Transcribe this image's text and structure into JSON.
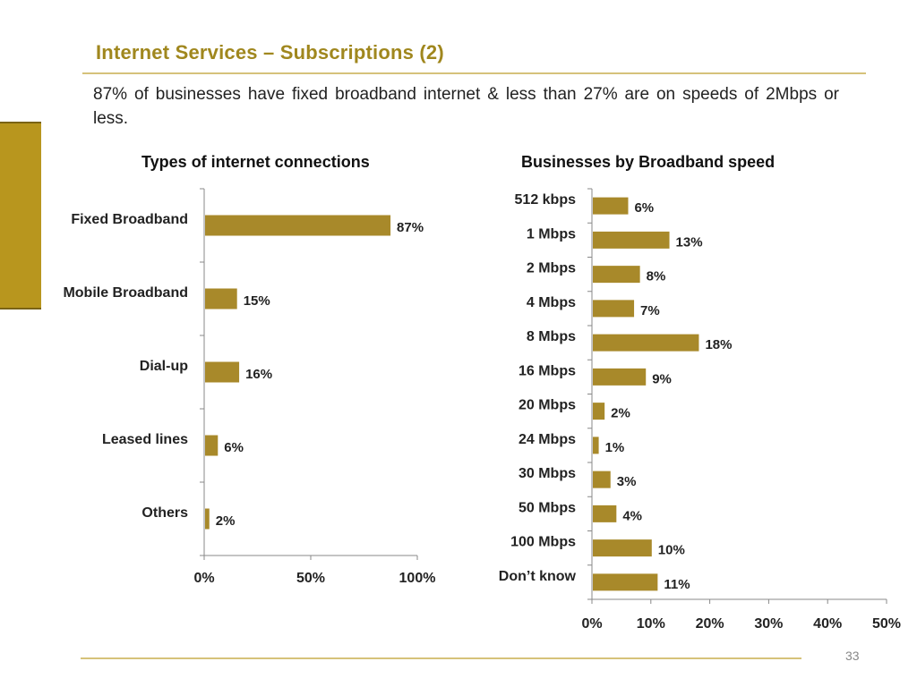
{
  "slide": {
    "title": "Internet Services – Subscriptions (2)",
    "subtitle": "87% of businesses have fixed broadband internet & less than 27% are on speeds of 2Mbps or less.",
    "page_number": "33"
  },
  "colors": {
    "bar": "#a8892a",
    "accent": "#b8961e",
    "title": "#a0871e",
    "rule": "#d6c27a"
  },
  "chart_data": [
    {
      "type": "bar",
      "orientation": "horizontal",
      "title": "Types of internet connections",
      "categories": [
        "Fixed Broadband",
        "Mobile Broadband",
        "Dial-up",
        "Leased lines",
        "Others"
      ],
      "values": [
        87,
        15,
        16,
        6,
        2
      ],
      "value_labels": [
        "87%",
        "15%",
        "16%",
        "6%",
        "2%"
      ],
      "xlim": [
        0,
        100
      ],
      "xticks": [
        0,
        50,
        100
      ],
      "xtick_labels": [
        "0%",
        "50%",
        "100%"
      ],
      "grid": false,
      "legend": "none"
    },
    {
      "type": "bar",
      "orientation": "horizontal",
      "title": "Businesses by Broadband speed",
      "categories": [
        "512  kbps",
        "1 Mbps",
        "2 Mbps",
        "4 Mbps",
        "8  Mbps",
        "16 Mbps",
        "20 Mbps",
        "24 Mbps",
        "30 Mbps",
        "50 Mbps",
        "100 Mbps",
        "Don’t know"
      ],
      "values": [
        6,
        13,
        8,
        7,
        18,
        9,
        2,
        1,
        3,
        4,
        10,
        11
      ],
      "value_labels": [
        "6%",
        "13%",
        "8%",
        "7%",
        "18%",
        "9%",
        "2%",
        "1%",
        "3%",
        "4%",
        "10%",
        "11%"
      ],
      "xlim": [
        0,
        50
      ],
      "xticks": [
        0,
        10,
        20,
        30,
        40,
        50
      ],
      "xtick_labels": [
        "0%",
        "10%",
        "20%",
        "30%",
        "40%",
        "50%"
      ],
      "grid": false,
      "legend": "none"
    }
  ]
}
